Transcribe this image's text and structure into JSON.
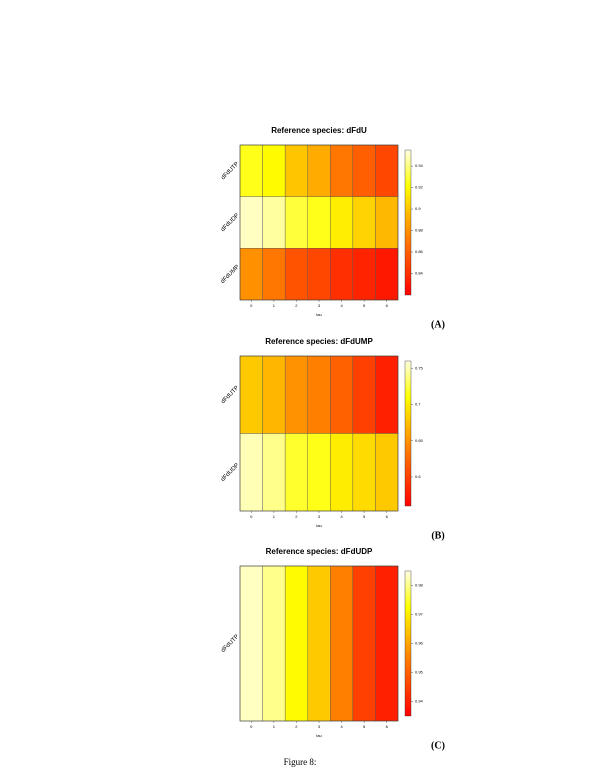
{
  "caption": "Figure 8:",
  "chart_data": [
    {
      "type": "heatmap",
      "title": "Reference species: dFdU",
      "panel_label": "(A)",
      "xlabel": "tau",
      "x_categories": [
        "0",
        "1",
        "2",
        "3",
        "4",
        "5",
        "6"
      ],
      "y_categories": [
        "dFdUTP",
        "dFdUDP",
        "dFdUMP"
      ],
      "values": [
        [
          0.925,
          0.92,
          0.9,
          0.89,
          0.87,
          0.86,
          0.85
        ],
        [
          0.95,
          0.945,
          0.93,
          0.925,
          0.915,
          0.905,
          0.895
        ],
        [
          0.88,
          0.87,
          0.855,
          0.85,
          0.84,
          0.835,
          0.83
        ]
      ],
      "clim": [
        0.82,
        0.955
      ],
      "cticks": [
        0.84,
        0.86,
        0.88,
        0.9,
        0.92,
        0.94
      ]
    },
    {
      "type": "heatmap",
      "title": "Reference species: dFdUMP",
      "panel_label": "(B)",
      "xlabel": "tau",
      "x_categories": [
        "0",
        "1",
        "2",
        "3",
        "4",
        "5",
        "6"
      ],
      "y_categories": [
        "dFdUTP",
        "dFdUDP"
      ],
      "values": [
        [
          0.68,
          0.67,
          0.65,
          0.64,
          0.62,
          0.6,
          0.58
        ],
        [
          0.75,
          0.74,
          0.72,
          0.715,
          0.7,
          0.69,
          0.68
        ]
      ],
      "clim": [
        0.56,
        0.76
      ],
      "cticks": [
        0.6,
        0.65,
        0.7,
        0.75
      ]
    },
    {
      "type": "heatmap",
      "title": "Reference species: dFdUDP",
      "panel_label": "(C)",
      "xlabel": "tau",
      "x_categories": [
        "0",
        "1",
        "2",
        "3",
        "4",
        "5",
        "6"
      ],
      "y_categories": [
        "dFdUTP"
      ],
      "values": [
        [
          0.983,
          0.98,
          0.972,
          0.965,
          0.955,
          0.945,
          0.94
        ]
      ],
      "clim": [
        0.935,
        0.985
      ],
      "cticks": [
        0.94,
        0.95,
        0.96,
        0.97,
        0.98
      ]
    }
  ]
}
